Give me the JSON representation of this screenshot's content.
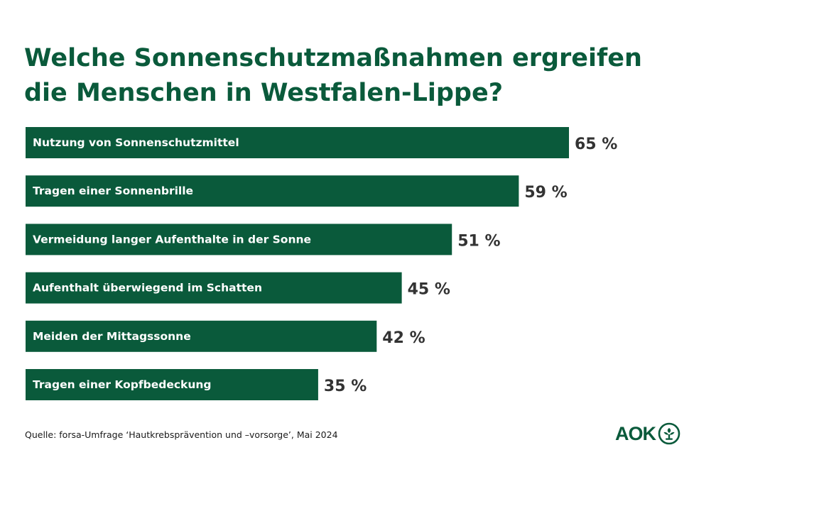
{
  "header": {
    "title_line1": "Welche Sonnenschutzmaßnahmen ergreifen",
    "title_line2": "die Menschen in Westfalen-Lippe?"
  },
  "chart_data": {
    "type": "bar",
    "orientation": "horizontal",
    "categories": [
      "Nutzung von Sonnenschutzmittel",
      "Tragen einer Sonnenbrille",
      "Vermeidung langer Aufenthalte in der Sonne",
      "Aufenthalt überwiegend im Schatten",
      "Meiden der Mittagssonne",
      "Tragen einer Kopfbedeckung"
    ],
    "values": [
      65,
      59,
      51,
      45,
      42,
      35
    ],
    "value_labels": [
      "65 %",
      "59 %",
      "51 %",
      "45 %",
      "42 %",
      "35 %"
    ],
    "unit": "%",
    "title": "Welche Sonnenschutzmaßnahmen ergreifen die Menschen in Westfalen-Lippe?",
    "xlabel": "",
    "ylabel": "",
    "grid": false,
    "legend": "none",
    "bar_color": "#0a5a3b"
  },
  "footer": {
    "source": "Quelle: forsa-Umfrage ‘Hautkrebsprävention und –vorsorge’, Mai 2024",
    "logo_text": "AOK",
    "logo_icon": "aok-tree-icon"
  },
  "colors": {
    "brand_green": "#0a5a3b",
    "value_text": "#333333",
    "bar_label_text": "#ffffff"
  }
}
